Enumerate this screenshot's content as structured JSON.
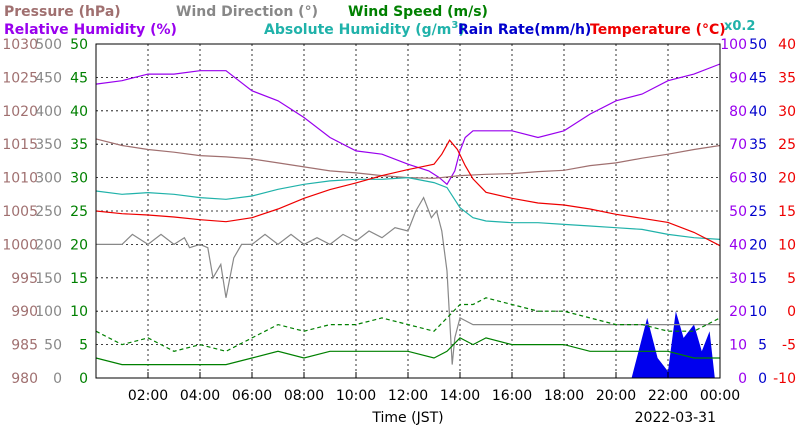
{
  "chart_data": {
    "type": "line",
    "date": "2022-03-31",
    "xlabel": "Time (JST)",
    "x_ticks": [
      "02:00",
      "04:00",
      "06:00",
      "08:00",
      "10:00",
      "12:00",
      "14:00",
      "16:00",
      "18:00",
      "20:00",
      "22:00",
      "00:00"
    ],
    "xlim_hours": [
      0,
      24
    ],
    "grid": true,
    "legend": [
      {
        "key": "pressure",
        "text": "Pressure (hPa)",
        "color": "#a07070"
      },
      {
        "key": "wind_dir",
        "text": "Wind Direction (°)",
        "color": "#888888"
      },
      {
        "key": "wind_speed",
        "text": "Wind Speed (m/s)",
        "color": "#008000"
      },
      {
        "key": "rh",
        "text": "Relative Humidity (%)",
        "color": "#9900ee"
      },
      {
        "key": "ah_base",
        "text": "Absolute Humidity (g/m",
        "sup": "3",
        "close": ")",
        "color": "#20b2aa"
      },
      {
        "key": "rain",
        "text": "Rain Rate(mm/h)",
        "color": "#0000cc"
      },
      {
        "key": "temp",
        "text": "Temperature (°C)",
        "color": "#ee0000"
      }
    ],
    "x02_label": "x0.2",
    "axes": {
      "pressure": {
        "color": "#a07070",
        "ticks": [
          "980",
          "985",
          "990",
          "995",
          "1000",
          "1005",
          "1010",
          "1015",
          "1020",
          "1025",
          "1030"
        ],
        "range": [
          980,
          1030
        ]
      },
      "wind_dir": {
        "color": "#888888",
        "ticks": [
          "0",
          "50",
          "100",
          "150",
          "200",
          "250",
          "300",
          "350",
          "400",
          "450",
          "500"
        ],
        "range": [
          0,
          500
        ]
      },
      "wind_speed": {
        "color": "#008000",
        "ticks": [
          "0",
          "5",
          "10",
          "15",
          "20",
          "25",
          "30",
          "35",
          "40",
          "45",
          "50"
        ],
        "range": [
          0,
          50
        ]
      },
      "rh": {
        "color": "#9900ee",
        "ticks": [
          "0",
          "10",
          "20",
          "30",
          "40",
          "50",
          "60",
          "70",
          "80",
          "90",
          "100"
        ],
        "range": [
          0,
          100
        ]
      },
      "rain": {
        "color": "#0000cc",
        "ticks": [
          "0",
          "5",
          "10",
          "15",
          "20",
          "25",
          "30",
          "35",
          "40",
          "45",
          "50"
        ],
        "range": [
          0,
          50
        ]
      },
      "temp": {
        "color": "#ee0000",
        "ticks": [
          "-10",
          "-5",
          "0",
          "5",
          "10",
          "15",
          "20",
          "25",
          "30",
          "35",
          "40"
        ],
        "range": [
          -10,
          40
        ]
      }
    },
    "series": [
      {
        "key": "rh",
        "color": "#9900ee",
        "x": [
          0,
          1,
          2,
          3,
          4,
          5,
          6,
          7,
          8,
          9,
          10,
          11,
          12,
          12.8,
          13.2,
          13.5,
          13.8,
          14,
          14.2,
          14.5,
          15,
          16,
          17,
          18,
          19,
          20,
          21,
          22,
          23,
          24
        ],
        "y": [
          88,
          89,
          91,
          91,
          92,
          92,
          86,
          83,
          78,
          72,
          68,
          67,
          64,
          62,
          60,
          58,
          62,
          68,
          72,
          74,
          74,
          74,
          72,
          74,
          79,
          83,
          85,
          89,
          91,
          94
        ]
      },
      {
        "key": "pressure",
        "color": "#a07070",
        "x": [
          0,
          1,
          2,
          3,
          4,
          5,
          6,
          7,
          8,
          9,
          10,
          11,
          12,
          13,
          14,
          15,
          16,
          17,
          18,
          19,
          20,
          21,
          22,
          23,
          24
        ],
        "y": [
          1015.8,
          1014.8,
          1014.2,
          1013.8,
          1013.3,
          1013.1,
          1012.8,
          1012.2,
          1011.6,
          1011.0,
          1010.7,
          1010.3,
          1010.0,
          1009.9,
          1010.3,
          1010.5,
          1010.6,
          1010.9,
          1011.1,
          1011.8,
          1012.2,
          1012.9,
          1013.5,
          1014.2,
          1014.8
        ]
      },
      {
        "key": "ah",
        "color": "#20b2aa",
        "x": [
          0,
          1,
          2,
          3,
          4,
          5,
          6,
          7,
          8,
          9,
          10,
          11,
          12,
          13,
          13.5,
          14,
          14.5,
          15,
          16,
          17,
          18,
          19,
          20,
          21,
          22,
          23,
          24
        ],
        "y": [
          11.2,
          11.0,
          11.1,
          11.0,
          10.8,
          10.7,
          10.9,
          11.3,
          11.6,
          11.8,
          11.9,
          11.9,
          12.0,
          11.7,
          11.4,
          10.2,
          9.6,
          9.4,
          9.3,
          9.3,
          9.2,
          9.1,
          9.0,
          8.9,
          8.6,
          8.4,
          8.3
        ]
      },
      {
        "key": "temp",
        "color": "#ee0000",
        "x": [
          0,
          1,
          2,
          3,
          4,
          5,
          6,
          7,
          8,
          9,
          10,
          11,
          12,
          12.5,
          13,
          13.3,
          13.6,
          13.9,
          14.2,
          14.5,
          15,
          16,
          17,
          18,
          19,
          20,
          21,
          22,
          23,
          24
        ],
        "y": [
          15,
          14.6,
          14.4,
          14.1,
          13.7,
          13.4,
          14.0,
          15.3,
          16.9,
          18.2,
          19.2,
          20.3,
          21.2,
          21.6,
          22.0,
          23.5,
          25.6,
          24.2,
          21.8,
          19.8,
          17.8,
          16.9,
          16.2,
          15.9,
          15.3,
          14.5,
          13.9,
          13.3,
          11.8,
          9.8
        ]
      },
      {
        "key": "wind_dir",
        "color": "#888888",
        "x": [
          0,
          1,
          1.4,
          2,
          2.5,
          3,
          3.4,
          3.6,
          4,
          4.3,
          4.5,
          4.8,
          5,
          5.3,
          5.6,
          6,
          6.5,
          7,
          7.5,
          8,
          8.5,
          9,
          9.5,
          10,
          10.5,
          11,
          11.5,
          12,
          12.3,
          12.6,
          12.9,
          13.1,
          13.3,
          13.5,
          13.7,
          13.8,
          14,
          14.5,
          15,
          16,
          17,
          18,
          19,
          20,
          21,
          22,
          23,
          24
        ],
        "y": [
          200,
          200,
          215,
          200,
          215,
          200,
          210,
          195,
          200,
          195,
          150,
          170,
          120,
          180,
          200,
          200,
          215,
          200,
          215,
          200,
          210,
          200,
          215,
          205,
          220,
          210,
          225,
          220,
          250,
          270,
          240,
          250,
          220,
          160,
          20,
          60,
          90,
          80,
          80,
          80,
          80,
          80,
          80,
          80,
          80,
          80,
          80,
          80
        ]
      },
      {
        "key": "wind_speed_max",
        "color": "#008000",
        "dashed": true,
        "x": [
          0,
          1,
          2,
          3,
          4,
          5,
          6,
          7,
          8,
          9,
          10,
          11,
          12,
          13,
          13.5,
          14,
          14.5,
          15,
          16,
          17,
          18,
          19,
          20,
          21,
          22,
          23,
          24
        ],
        "y": [
          7,
          5,
          6,
          4,
          5,
          4,
          6,
          8,
          7,
          8,
          8,
          9,
          8,
          7,
          9,
          11,
          11,
          12,
          11,
          10,
          10,
          9,
          8,
          8,
          7,
          7,
          9
        ]
      },
      {
        "key": "wind_speed",
        "color": "#008000",
        "x": [
          0,
          1,
          2,
          3,
          4,
          5,
          6,
          7,
          8,
          9,
          10,
          11,
          12,
          13,
          13.5,
          14,
          14.5,
          15,
          16,
          17,
          18,
          19,
          20,
          21,
          22,
          23,
          24
        ],
        "y": [
          3,
          2,
          2,
          2,
          2,
          2,
          3,
          4,
          3,
          4,
          4,
          4,
          4,
          3,
          4,
          6,
          5,
          6,
          5,
          5,
          5,
          4,
          4,
          4,
          4,
          3,
          3
        ]
      }
    ],
    "rain": {
      "key": "rain",
      "color": "#0000ee",
      "x": [
        20.8,
        21.2,
        21.6,
        22.0,
        22.3,
        22.6,
        23.0,
        23.3,
        23.6
      ],
      "y": [
        3,
        9,
        3,
        1,
        10,
        6,
        8,
        4,
        7
      ]
    }
  }
}
